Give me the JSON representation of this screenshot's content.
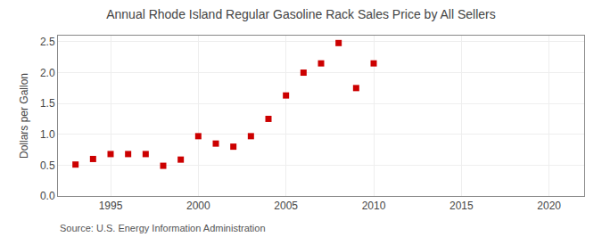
{
  "chart_data": {
    "type": "scatter",
    "title": "Annual Rhode Island Regular Gasoline Rack Sales Price by All Sellers",
    "ylabel": "Dollars per Gallon",
    "source": "Source: U.S. Energy Information Administration",
    "x": [
      1993,
      1994,
      1995,
      1996,
      1997,
      1998,
      1999,
      2000,
      2001,
      2002,
      2003,
      2004,
      2005,
      2006,
      2007,
      2008,
      2009,
      2010
    ],
    "values": [
      0.51,
      0.6,
      0.68,
      0.68,
      0.68,
      0.49,
      0.59,
      0.97,
      0.85,
      0.8,
      0.97,
      1.25,
      1.63,
      2.0,
      2.15,
      2.48,
      1.75,
      2.15
    ],
    "color": "#cc0000",
    "marker": "square",
    "xlim": [
      1992,
      2022
    ],
    "xticks": [
      1995,
      2000,
      2005,
      2010,
      2015,
      2020
    ],
    "ylim": [
      0.0,
      2.6
    ],
    "yticks": [
      {
        "value": 0.0,
        "label": "0.0"
      },
      0.5,
      {
        "value": 1.0,
        "label": "1.0"
      },
      1.5,
      {
        "value": 2.0,
        "label": "2.0"
      },
      2.5
    ],
    "grid": true
  }
}
